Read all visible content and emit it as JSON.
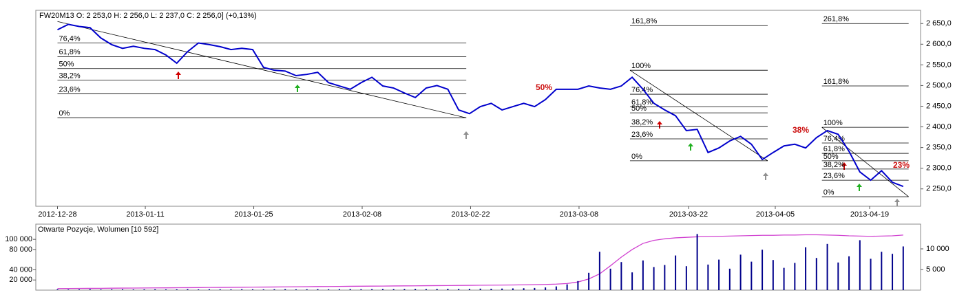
{
  "chart_data": [
    {
      "type": "line",
      "title": "FW20M13 O: 2 253,0  H: 2 256,0  L: 2 237,0  C: 2 256,0] (+0,13%)",
      "color": "#0000cc",
      "values": [
        2635,
        2648,
        2643,
        2640,
        2615,
        2599,
        2590,
        2595,
        2590,
        2587,
        2574,
        2554,
        2582,
        2603,
        2599,
        2594,
        2587,
        2590,
        2587,
        2544,
        2537,
        2535,
        2524,
        2527,
        2532,
        2507,
        2499,
        2491,
        2507,
        2520,
        2499,
        2494,
        2482,
        2471,
        2494,
        2500,
        2491,
        2441,
        2432,
        2449,
        2457,
        2441,
        2449,
        2457,
        2449,
        2466,
        2491,
        2491,
        2491,
        2499,
        2494,
        2491,
        2499,
        2520,
        2491,
        2457,
        2441,
        2427,
        2391,
        2394,
        2338,
        2349,
        2366,
        2377,
        2358,
        2321,
        2338,
        2354,
        2358,
        2349,
        2374,
        2391,
        2382,
        2341,
        2291,
        2271,
        2294,
        2266,
        2256
      ],
      "xlim": [
        -2,
        79.6
      ],
      "xticks": [
        {
          "value": 0,
          "label": "2012-12-28"
        },
        {
          "value": 8.1,
          "label": "2013-01-11"
        },
        {
          "value": 18.1,
          "label": "2013-01-25"
        },
        {
          "value": 28.1,
          "label": "2013-02-08"
        },
        {
          "value": 38.1,
          "label": "2013-02-22"
        },
        {
          "value": 48.1,
          "label": "2013-03-08"
        },
        {
          "value": 58.2,
          "label": "2013-03-22"
        },
        {
          "value": 66.2,
          "label": "2013-04-05"
        },
        {
          "value": 74.9,
          "label": "2013-04-19"
        }
      ],
      "ylim": [
        2208,
        2682
      ],
      "yticks": [
        {
          "value": 2250,
          "label": "2 250,0"
        },
        {
          "value": 2300,
          "label": "2 300,0"
        },
        {
          "value": 2350,
          "label": "2 350,0"
        },
        {
          "value": 2400,
          "label": "2 400,0"
        },
        {
          "value": 2450,
          "label": "2 450,0"
        },
        {
          "value": 2500,
          "label": "2 500,0"
        },
        {
          "value": 2550,
          "label": "2 550,0"
        },
        {
          "value": 2600,
          "label": "2 600,0"
        },
        {
          "value": 2650,
          "label": "2 650,0"
        }
      ],
      "fibonacci": [
        {
          "x_start": 0,
          "x_end": 37.7,
          "trend_from": 2655,
          "trend_to": 2422,
          "levels": [
            {
              "level": "76,4%",
              "price": 2603
            },
            {
              "level": "61,8%",
              "price": 2570
            },
            {
              "level": "50%",
              "price": 2541
            },
            {
              "level": "38,2%",
              "price": 2513
            },
            {
              "level": "23,6%",
              "price": 2480
            },
            {
              "level": "0%",
              "price": 2422
            }
          ]
        },
        {
          "x_start": 52.8,
          "x_end": 65.5,
          "trend_from": 2537,
          "trend_to": 2318,
          "levels": [
            {
              "level": "161,8%",
              "price": 2645
            },
            {
              "level": "100%",
              "price": 2537
            },
            {
              "level": "76,4%",
              "price": 2479
            },
            {
              "level": "61,8%",
              "price": 2449
            },
            {
              "level": "50%",
              "price": 2434
            },
            {
              "level": "38,2%",
              "price": 2401
            },
            {
              "level": "23,6%",
              "price": 2371
            },
            {
              "level": "0%",
              "price": 2318
            }
          ]
        },
        {
          "x_start": 70.5,
          "x_end": 78.5,
          "trend_from": 2399,
          "trend_to": 2231,
          "levels": [
            {
              "level": "261,8%",
              "price": 2650
            },
            {
              "level": "161,8%",
              "price": 2499
            },
            {
              "level": "100%",
              "price": 2399
            },
            {
              "level": "76,4%",
              "price": 2361
            },
            {
              "level": "61,8%",
              "price": 2336
            },
            {
              "level": "50%",
              "price": 2318
            },
            {
              "level": "38,2%",
              "price": 2298
            },
            {
              "level": "23,6%",
              "price": 2271
            },
            {
              "level": "0%",
              "price": 2231
            }
          ]
        }
      ],
      "annotations": [
        "50%",
        "38%",
        "23%"
      ]
    },
    {
      "type": "combo",
      "title": "Otwarte Pozycje, Wolumen [10 592]",
      "xlim": [
        -2,
        79.6
      ],
      "ylim": [
        0,
        130000
      ],
      "yticks": [
        {
          "value": 20000,
          "label": "20 000"
        },
        {
          "value": 40000,
          "label": "40 000"
        },
        {
          "value": 80000,
          "label": "80 000"
        },
        {
          "value": 100000,
          "label": "100 000"
        }
      ],
      "y2lim": [
        0,
        16000
      ],
      "y2ticks": [
        {
          "value": 5000,
          "label": "5 000"
        },
        {
          "value": 10000,
          "label": "10 000"
        }
      ],
      "series": [
        {
          "type": "line",
          "color": "#d040d0",
          "values": [
            3000,
            3200,
            3400,
            3500,
            3600,
            3800,
            4000,
            4100,
            4200,
            4400,
            4500,
            4700,
            4800,
            5000,
            5200,
            5300,
            5500,
            5700,
            5900,
            6000,
            6200,
            6400,
            6600,
            6800,
            7000,
            7100,
            7300,
            7500,
            7700,
            7900,
            8000,
            8200,
            8400,
            8500,
            8700,
            8900,
            9000,
            9200,
            9400,
            9600,
            9800,
            10000,
            10200,
            10500,
            10800,
            11200,
            11800,
            13000,
            16000,
            22000,
            32000,
            48000,
            65000,
            80000,
            92000,
            98000,
            101000,
            103000,
            104000,
            105000,
            105500,
            106000,
            106500,
            107000,
            107500,
            108000,
            108000,
            108500,
            108500,
            109000,
            109000,
            108500,
            108000,
            107000,
            106500,
            106000,
            106500,
            107000,
            108500
          ]
        },
        {
          "type": "bar",
          "axis": "y2",
          "color": "#00008b",
          "values": [
            200,
            150,
            180,
            220,
            160,
            190,
            210,
            170,
            200,
            230,
            180,
            210,
            250,
            190,
            220,
            200,
            180,
            240,
            210,
            190,
            230,
            260,
            200,
            220,
            250,
            210,
            240,
            270,
            230,
            260,
            290,
            250,
            280,
            310,
            270,
            300,
            330,
            290,
            320,
            360,
            340,
            380,
            420,
            460,
            520,
            650,
            900,
            1400,
            2200,
            4200,
            9300,
            5200,
            6800,
            4300,
            7200,
            5600,
            6100,
            8400,
            5800,
            13600,
            6200,
            7400,
            5200,
            8600,
            6900,
            9800,
            7300,
            5400,
            6600,
            10400,
            7800,
            11200,
            6700,
            8200,
            12100,
            7600,
            9300,
            8800,
            10592
          ]
        }
      ]
    }
  ]
}
